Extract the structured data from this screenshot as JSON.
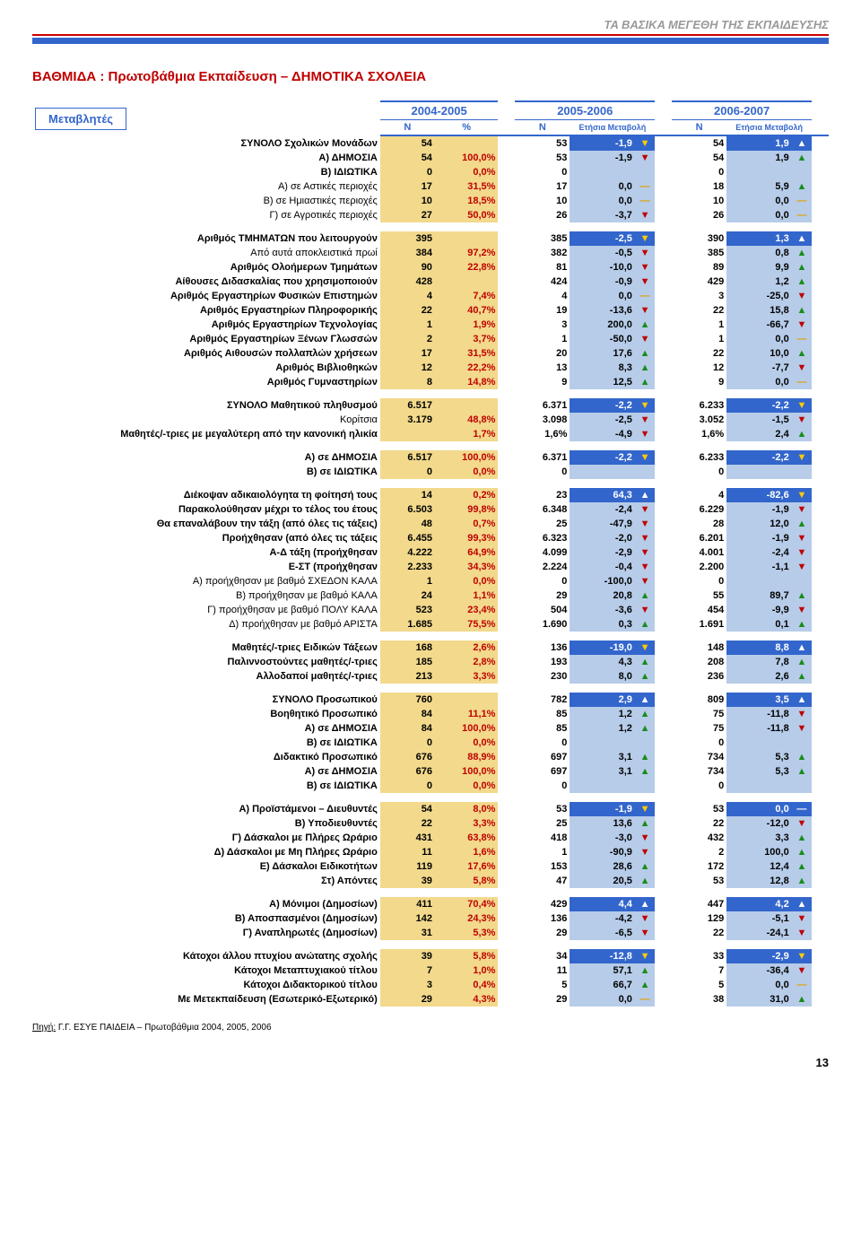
{
  "running_head": "ΤΑ ΒΑΣΙΚΑ ΜΕΓΕΘΗ ΤΗΣ ΕΚΠΑΙΔΕΥΣΗΣ",
  "title": "ΒΑΘΜΙΔΑ :  Πρωτοβάθμια Εκπαίδευση – ΔΗΜΟΤΙΚΑ ΣΧΟΛΕΙΑ",
  "legend": "Μεταβλητές",
  "periods": [
    "2004-2005",
    "2005-2006",
    "2006-2007"
  ],
  "subhdr": {
    "n": "Ν",
    "pct": "%",
    "delta": "Ετήσια\nΜεταβολή"
  },
  "source": {
    "label": "Πηγή:",
    "text": "Γ.Γ. ΕΣΥΕ ΠΑΙΔΕΙΑ – Πρωτοβάθμια 2004, 2005, 2006"
  },
  "pagenum": "13",
  "groups": [
    [
      {
        "l": "ΣΥΝΟΛΟ Σχολικών Μονάδων",
        "b": 1,
        "dk": 1,
        "n1": "54",
        "p": "",
        "n2": "53",
        "d2": "-1,9",
        "a2": "dn",
        "n3": "54",
        "d3": "1,9",
        "a3": "up"
      },
      {
        "l": "Α) ΔΗΜΟΣΙΑ",
        "b": 1,
        "n1": "54",
        "p": "100,0%",
        "n2": "53",
        "d2": "-1,9",
        "a2": "dn",
        "n3": "54",
        "d3": "1,9",
        "a3": "up"
      },
      {
        "l": "Β) ΙΔΙΩΤΙΚΑ",
        "b": 1,
        "n1": "0",
        "p": "0,0%",
        "n2": "0",
        "d2": "",
        "a2": "",
        "n3": "0",
        "d3": "",
        "a3": ""
      },
      {
        "l": "Α) σε Αστικές περιοχές",
        "n1": "17",
        "p": "31,5%",
        "n2": "17",
        "d2": "0,0",
        "a2": "fl",
        "n3": "18",
        "d3": "5,9",
        "a3": "up"
      },
      {
        "l": "Β) σε Ημιαστικές περιοχές",
        "n1": "10",
        "p": "18,5%",
        "n2": "10",
        "d2": "0,0",
        "a2": "fl",
        "n3": "10",
        "d3": "0,0",
        "a3": "fl"
      },
      {
        "l": "Γ) σε Αγροτικές περιοχές",
        "n1": "27",
        "p": "50,0%",
        "n2": "26",
        "d2": "-3,7",
        "a2": "dn",
        "n3": "26",
        "d3": "0,0",
        "a3": "fl"
      }
    ],
    [
      {
        "l": "Αριθμός ΤΜΗΜΑΤΩΝ που λειτουργούν",
        "b": 1,
        "dk": 1,
        "n1": "395",
        "p": "",
        "n2": "385",
        "d2": "-2,5",
        "a2": "dn",
        "n3": "390",
        "d3": "1,3",
        "a3": "up"
      },
      {
        "l": "Από αυτά αποκλειστικά πρωί",
        "n1": "384",
        "p": "97,2%",
        "n2": "382",
        "d2": "-0,5",
        "a2": "dn",
        "n3": "385",
        "d3": "0,8",
        "a3": "up"
      },
      {
        "l": "Αριθμός Ολοήμερων Τμημάτων",
        "b": 1,
        "n1": "90",
        "p": "22,8%",
        "n2": "81",
        "d2": "-10,0",
        "a2": "dn",
        "n3": "89",
        "d3": "9,9",
        "a3": "up"
      },
      {
        "l": "Αίθουσες Διδασκαλίας που χρησιμοποιούν",
        "b": 1,
        "n1": "428",
        "p": "",
        "n2": "424",
        "d2": "-0,9",
        "a2": "dn",
        "n3": "429",
        "d3": "1,2",
        "a3": "up"
      },
      {
        "l": "Αριθμός Εργαστηρίων Φυσικών Επιστημών",
        "b": 1,
        "n1": "4",
        "p": "7,4%",
        "n2": "4",
        "d2": "0,0",
        "a2": "fl",
        "n3": "3",
        "d3": "-25,0",
        "a3": "dn"
      },
      {
        "l": "Αριθμός Εργαστηρίων Πληροφορικής",
        "b": 1,
        "n1": "22",
        "p": "40,7%",
        "n2": "19",
        "d2": "-13,6",
        "a2": "dn",
        "n3": "22",
        "d3": "15,8",
        "a3": "up"
      },
      {
        "l": "Αριθμός Εργαστηρίων Τεχνολογίας",
        "b": 1,
        "n1": "1",
        "p": "1,9%",
        "n2": "3",
        "d2": "200,0",
        "a2": "up",
        "n3": "1",
        "d3": "-66,7",
        "a3": "dn"
      },
      {
        "l": "Αριθμός Εργαστηρίων Ξένων Γλωσσών",
        "b": 1,
        "n1": "2",
        "p": "3,7%",
        "n2": "1",
        "d2": "-50,0",
        "a2": "dn",
        "n3": "1",
        "d3": "0,0",
        "a3": "fl"
      },
      {
        "l": "Αριθμός Αιθουσών πολλαπλών χρήσεων",
        "b": 1,
        "n1": "17",
        "p": "31,5%",
        "n2": "20",
        "d2": "17,6",
        "a2": "up",
        "n3": "22",
        "d3": "10,0",
        "a3": "up"
      },
      {
        "l": "Αριθμός Βιβλιοθηκών",
        "b": 1,
        "n1": "12",
        "p": "22,2%",
        "n2": "13",
        "d2": "8,3",
        "a2": "up",
        "n3": "12",
        "d3": "-7,7",
        "a3": "dn"
      },
      {
        "l": "Αριθμός Γυμναστηρίων",
        "b": 1,
        "n1": "8",
        "p": "14,8%",
        "n2": "9",
        "d2": "12,5",
        "a2": "up",
        "n3": "9",
        "d3": "0,0",
        "a3": "fl"
      }
    ],
    [
      {
        "l": "ΣΥΝΟΛΟ Μαθητικού πληθυσμού",
        "b": 1,
        "dk": 1,
        "n1": "6.517",
        "p": "",
        "n2": "6.371",
        "d2": "-2,2",
        "a2": "dn",
        "n3": "6.233",
        "d3": "-2,2",
        "a3": "dn"
      },
      {
        "l": "Κορίτσια",
        "n1": "3.179",
        "p": "48,8%",
        "n2": "3.098",
        "d2": "-2,5",
        "a2": "dn",
        "n3": "3.052",
        "d3": "-1,5",
        "a3": "dn"
      },
      {
        "l": "Μαθητές/-τριες με μεγαλύτερη από την κανονική ηλικία",
        "b": 1,
        "n1": "",
        "p": "1,7%",
        "n2": "",
        "d2": "-4,9",
        "a2": "dn",
        "n3": "",
        "d3": "2,4",
        "a3": "up",
        "p2": "1,6%",
        "p3": "1,6%"
      }
    ],
    [
      {
        "l": "Α) σε ΔΗΜΟΣΙΑ",
        "b": 1,
        "dk": 1,
        "n1": "6.517",
        "p": "100,0%",
        "n2": "6.371",
        "d2": "-2,2",
        "a2": "dn",
        "n3": "6.233",
        "d3": "-2,2",
        "a3": "dn"
      },
      {
        "l": "Β) σε ΙΔΙΩΤΙΚΑ",
        "b": 1,
        "n1": "0",
        "p": "0,0%",
        "n2": "0",
        "d2": "",
        "a2": "",
        "n3": "0",
        "d3": "",
        "a3": ""
      }
    ],
    [
      {
        "l": "Διέκοψαν αδικαιολόγητα τη φοίτησή τους",
        "b": 1,
        "dk": 1,
        "n1": "14",
        "p": "0,2%",
        "n2": "23",
        "d2": "64,3",
        "a2": "up",
        "n3": "4",
        "d3": "-82,6",
        "a3": "dn"
      },
      {
        "l": "Παρακολούθησαν  μέχρι το τέλος του έτους",
        "b": 1,
        "n1": "6.503",
        "p": "99,8%",
        "n2": "6.348",
        "d2": "-2,4",
        "a2": "dn",
        "n3": "6.229",
        "d3": "-1,9",
        "a3": "dn"
      },
      {
        "l": "Θα επαναλάβουν την τάξη (από όλες τις τάξεις)",
        "b": 1,
        "n1": "48",
        "p": "0,7%",
        "n2": "25",
        "d2": "-47,9",
        "a2": "dn",
        "n3": "28",
        "d3": "12,0",
        "a3": "up"
      },
      {
        "l": "Προήχθησαν (από όλες τις τάξεις",
        "b": 1,
        "n1": "6.455",
        "p": "99,3%",
        "n2": "6.323",
        "d2": "-2,0",
        "a2": "dn",
        "n3": "6.201",
        "d3": "-1,9",
        "a3": "dn"
      },
      {
        "l": "Α-Δ τάξη (προήχθησαν",
        "b": 1,
        "n1": "4.222",
        "p": "64,9%",
        "n2": "4.099",
        "d2": "-2,9",
        "a2": "dn",
        "n3": "4.001",
        "d3": "-2,4",
        "a3": "dn"
      },
      {
        "l": "Ε-ΣΤ (προήχθησαν",
        "b": 1,
        "n1": "2.233",
        "p": "34,3%",
        "n2": "2.224",
        "d2": "-0,4",
        "a2": "dn",
        "n3": "2.200",
        "d3": "-1,1",
        "a3": "dn"
      },
      {
        "l": "Α) προήχθησαν με βαθμό ΣΧΕΔΟΝ ΚΑΛΑ",
        "n1": "1",
        "p": "0,0%",
        "n2": "0",
        "d2": "-100,0",
        "a2": "dn",
        "n3": "0",
        "d3": "",
        "a3": ""
      },
      {
        "l": "Β) προήχθησαν με βαθμό ΚΑΛΑ",
        "n1": "24",
        "p": "1,1%",
        "n2": "29",
        "d2": "20,8",
        "a2": "up",
        "n3": "55",
        "d3": "89,7",
        "a3": "up"
      },
      {
        "l": "Γ) προήχθησαν με βαθμό ΠΟΛΥ ΚΑΛΑ",
        "n1": "523",
        "p": "23,4%",
        "n2": "504",
        "d2": "-3,6",
        "a2": "dn",
        "n3": "454",
        "d3": "-9,9",
        "a3": "dn"
      },
      {
        "l": "Δ) προήχθησαν με βαθμό ΑΡΙΣΤΑ",
        "n1": "1.685",
        "p": "75,5%",
        "n2": "1.690",
        "d2": "0,3",
        "a2": "up",
        "n3": "1.691",
        "d3": "0,1",
        "a3": "up"
      }
    ],
    [
      {
        "l": "Μαθητές/-τριες Ειδικών Τάξεων",
        "b": 1,
        "dk": 1,
        "n1": "168",
        "p": "2,6%",
        "n2": "136",
        "d2": "-19,0",
        "a2": "dn",
        "n3": "148",
        "d3": "8,8",
        "a3": "up"
      },
      {
        "l": "Παλιννοστούντες μαθητές/-τριες",
        "b": 1,
        "n1": "185",
        "p": "2,8%",
        "n2": "193",
        "d2": "4,3",
        "a2": "up",
        "n3": "208",
        "d3": "7,8",
        "a3": "up"
      },
      {
        "l": "Αλλοδαποί μαθητές/-τριες",
        "b": 1,
        "n1": "213",
        "p": "3,3%",
        "n2": "230",
        "d2": "8,0",
        "a2": "up",
        "n3": "236",
        "d3": "2,6",
        "a3": "up"
      }
    ],
    [
      {
        "l": "ΣΥΝΟΛΟ Προσωπικού",
        "b": 1,
        "dk": 1,
        "n1": "760",
        "p": "",
        "n2": "782",
        "d2": "2,9",
        "a2": "up",
        "n3": "809",
        "d3": "3,5",
        "a3": "up"
      },
      {
        "l": "Βοηθητικό Προσωπικό",
        "b": 1,
        "n1": "84",
        "p": "11,1%",
        "n2": "85",
        "d2": "1,2",
        "a2": "up",
        "n3": "75",
        "d3": "-11,8",
        "a3": "dn"
      },
      {
        "l": "Α) σε ΔΗΜΟΣΙΑ",
        "b": 1,
        "n1": "84",
        "p": "100,0%",
        "n2": "85",
        "d2": "1,2",
        "a2": "up",
        "n3": "75",
        "d3": "-11,8",
        "a3": "dn"
      },
      {
        "l": "Β) σε ΙΔΙΩΤΙΚΑ",
        "b": 1,
        "n1": "0",
        "p": "0,0%",
        "n2": "0",
        "d2": "",
        "a2": "",
        "n3": "0",
        "d3": "",
        "a3": ""
      },
      {
        "l": "Διδακτικό Προσωπικό",
        "b": 1,
        "n1": "676",
        "p": "88,9%",
        "n2": "697",
        "d2": "3,1",
        "a2": "up",
        "n3": "734",
        "d3": "5,3",
        "a3": "up"
      },
      {
        "l": "Α) σε ΔΗΜΟΣΙΑ",
        "b": 1,
        "n1": "676",
        "p": "100,0%",
        "n2": "697",
        "d2": "3,1",
        "a2": "up",
        "n3": "734",
        "d3": "5,3",
        "a3": "up"
      },
      {
        "l": "Β) σε ΙΔΙΩΤΙΚΑ",
        "b": 1,
        "n1": "0",
        "p": "0,0%",
        "n2": "0",
        "d2": "",
        "a2": "",
        "n3": "0",
        "d3": "",
        "a3": ""
      }
    ],
    [
      {
        "l": "Α) Προϊστάμενοι – Διευθυντές",
        "b": 1,
        "dk": 1,
        "n1": "54",
        "p": "8,0%",
        "n2": "53",
        "d2": "-1,9",
        "a2": "dn",
        "n3": "53",
        "d3": "0,0",
        "a3": "fl"
      },
      {
        "l": "Β) Υποδιευθυντές",
        "b": 1,
        "n1": "22",
        "p": "3,3%",
        "n2": "25",
        "d2": "13,6",
        "a2": "up",
        "n3": "22",
        "d3": "-12,0",
        "a3": "dn"
      },
      {
        "l": "Γ) Δάσκαλοι με Πλήρες Ωράριο",
        "b": 1,
        "n1": "431",
        "p": "63,8%",
        "n2": "418",
        "d2": "-3,0",
        "a2": "dn",
        "n3": "432",
        "d3": "3,3",
        "a3": "up"
      },
      {
        "l": "Δ) Δάσκαλοι  με Μη Πλήρες Ωράριο",
        "b": 1,
        "n1": "11",
        "p": "1,6%",
        "n2": "1",
        "d2": "-90,9",
        "a2": "dn",
        "n3": "2",
        "d3": "100,0",
        "a3": "up"
      },
      {
        "l": "Ε) Δάσκαλοι Ειδικοτήτων",
        "b": 1,
        "n1": "119",
        "p": "17,6%",
        "n2": "153",
        "d2": "28,6",
        "a2": "up",
        "n3": "172",
        "d3": "12,4",
        "a3": "up"
      },
      {
        "l": "Στ) Απόντες",
        "b": 1,
        "n1": "39",
        "p": "5,8%",
        "n2": "47",
        "d2": "20,5",
        "a2": "up",
        "n3": "53",
        "d3": "12,8",
        "a3": "up"
      }
    ],
    [
      {
        "l": "Α) Μόνιμοι (Δημοσίων)",
        "b": 1,
        "dk": 1,
        "n1": "411",
        "p": "70,4%",
        "n2": "429",
        "d2": "4,4",
        "a2": "up",
        "n3": "447",
        "d3": "4,2",
        "a3": "up"
      },
      {
        "l": "Β) Αποσπασμένοι (Δημοσίων)",
        "b": 1,
        "n1": "142",
        "p": "24,3%",
        "n2": "136",
        "d2": "-4,2",
        "a2": "dn",
        "n3": "129",
        "d3": "-5,1",
        "a3": "dn"
      },
      {
        "l": "Γ) Αναπληρωτές (Δημοσίων)",
        "b": 1,
        "n1": "31",
        "p": "5,3%",
        "n2": "29",
        "d2": "-6,5",
        "a2": "dn",
        "n3": "22",
        "d3": "-24,1",
        "a3": "dn"
      }
    ],
    [
      {
        "l": "Κάτοχοι άλλου πτυχίου ανώτατης σχολής",
        "b": 1,
        "dk": 1,
        "n1": "39",
        "p": "5,8%",
        "n2": "34",
        "d2": "-12,8",
        "a2": "dn",
        "n3": "33",
        "d3": "-2,9",
        "a3": "dn"
      },
      {
        "l": "Κάτοχοι Μεταπτυχιακού τίτλου",
        "b": 1,
        "n1": "7",
        "p": "1,0%",
        "n2": "11",
        "d2": "57,1",
        "a2": "up",
        "n3": "7",
        "d3": "-36,4",
        "a3": "dn"
      },
      {
        "l": "Κάτοχοι Διδακτορικού τίτλου",
        "b": 1,
        "n1": "3",
        "p": "0,4%",
        "n2": "5",
        "d2": "66,7",
        "a2": "up",
        "n3": "5",
        "d3": "0,0",
        "a3": "fl"
      },
      {
        "l": "Με Μετεκπαίδευση (Εσωτερικό-Εξωτερικό)",
        "b": 1,
        "n1": "29",
        "p": "4,3%",
        "n2": "29",
        "d2": "0,0",
        "a2": "fl",
        "n3": "38",
        "d3": "31,0",
        "a3": "up"
      }
    ]
  ]
}
